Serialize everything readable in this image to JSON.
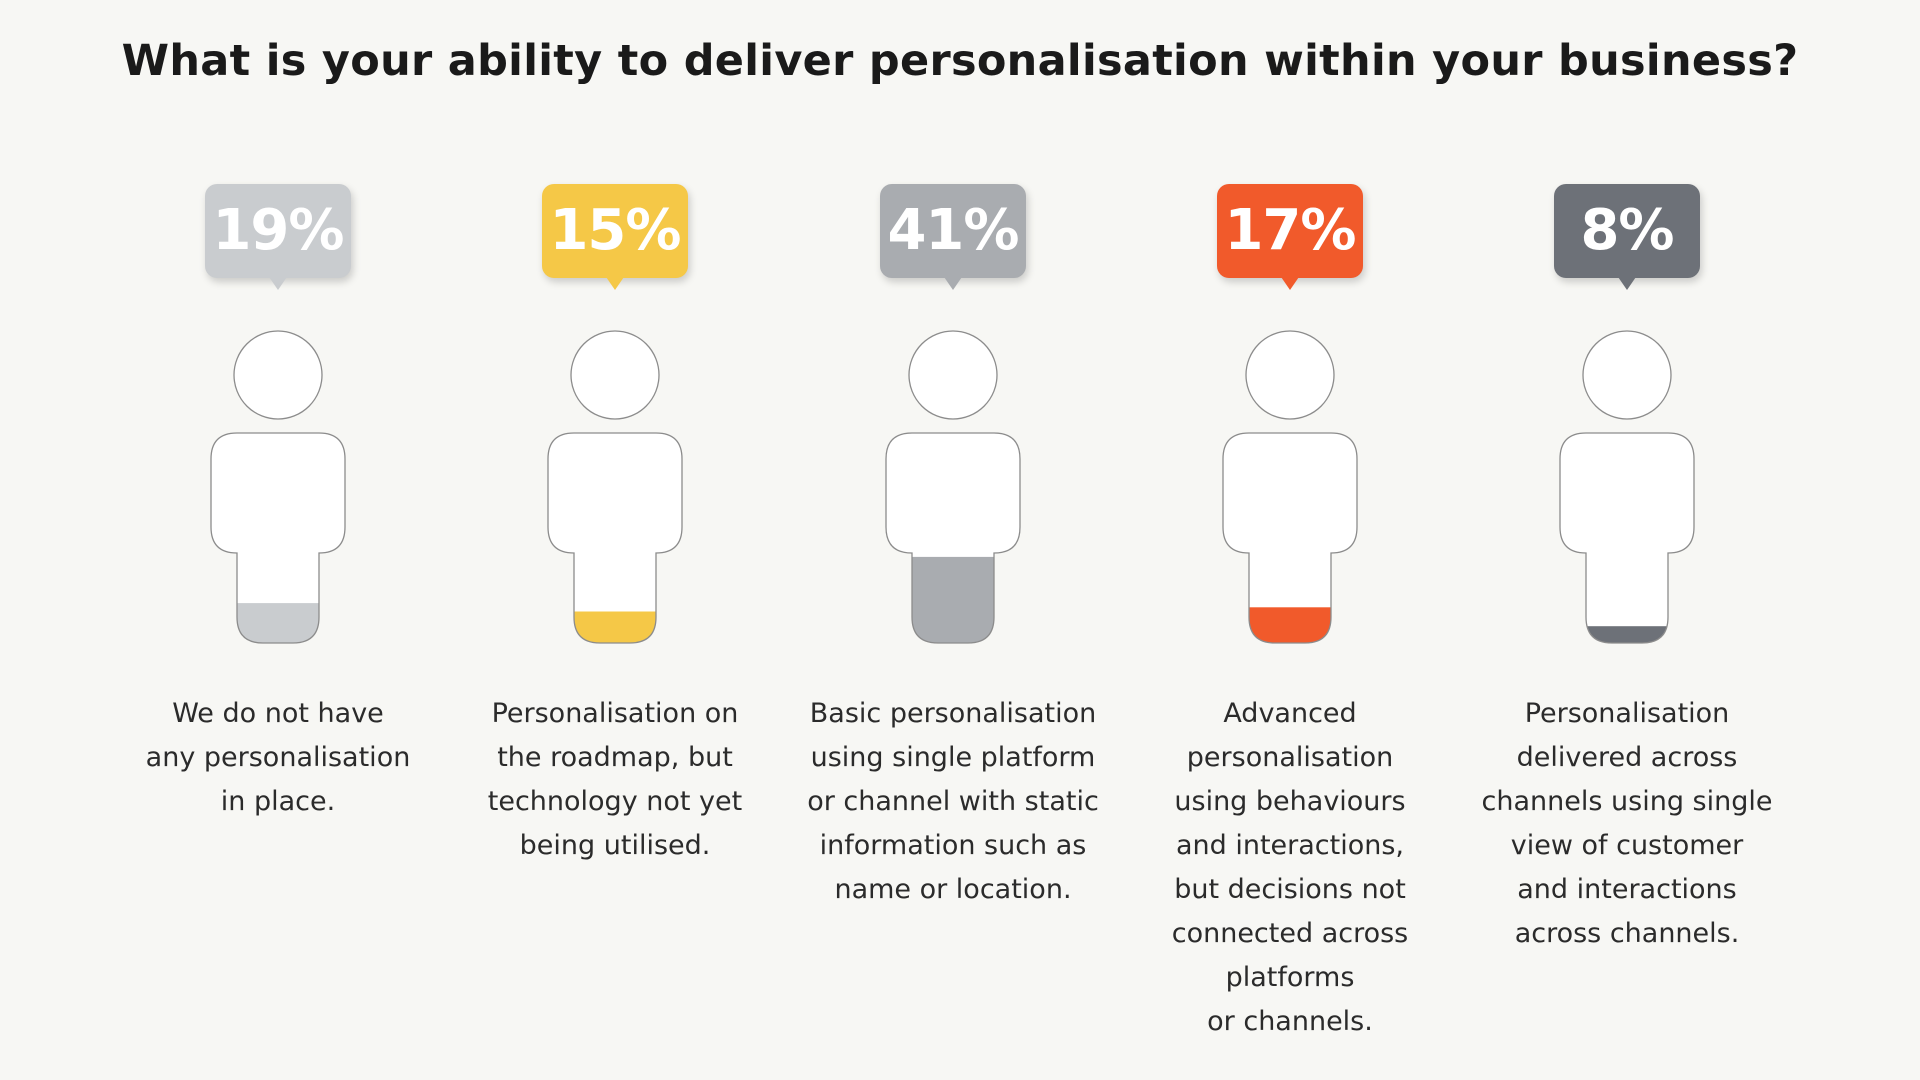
{
  "chart_data": {
    "type": "pictogram",
    "title": "What is your ability to deliver personalisation within your business?",
    "categories": [
      {
        "value": 19,
        "label": "19%",
        "color": "#c9cccf",
        "description": [
          "We do not have",
          "any personalisation",
          "in place."
        ]
      },
      {
        "value": 15,
        "label": "15%",
        "color": "#f5c847",
        "description": [
          "Personalisation on",
          "the roadmap, but",
          "technology not yet",
          "being utilised."
        ]
      },
      {
        "value": 41,
        "label": "41%",
        "color": "#a9acb0",
        "description": [
          "Basic personalisation",
          "using single platform",
          "or channel with static",
          "information such as",
          "name or location."
        ]
      },
      {
        "value": 17,
        "label": "17%",
        "color": "#f15a2b",
        "description": [
          "Advanced",
          "personalisation",
          "using behaviours",
          "and interactions,",
          "but decisions not",
          "connected across",
          "platforms",
          "or channels."
        ]
      },
      {
        "value": 8,
        "label": "8%",
        "color": "#6d7178",
        "description": [
          "Personalisation",
          "delivered across",
          "channels using single",
          "view of customer",
          "and interactions",
          "across channels."
        ]
      }
    ]
  }
}
